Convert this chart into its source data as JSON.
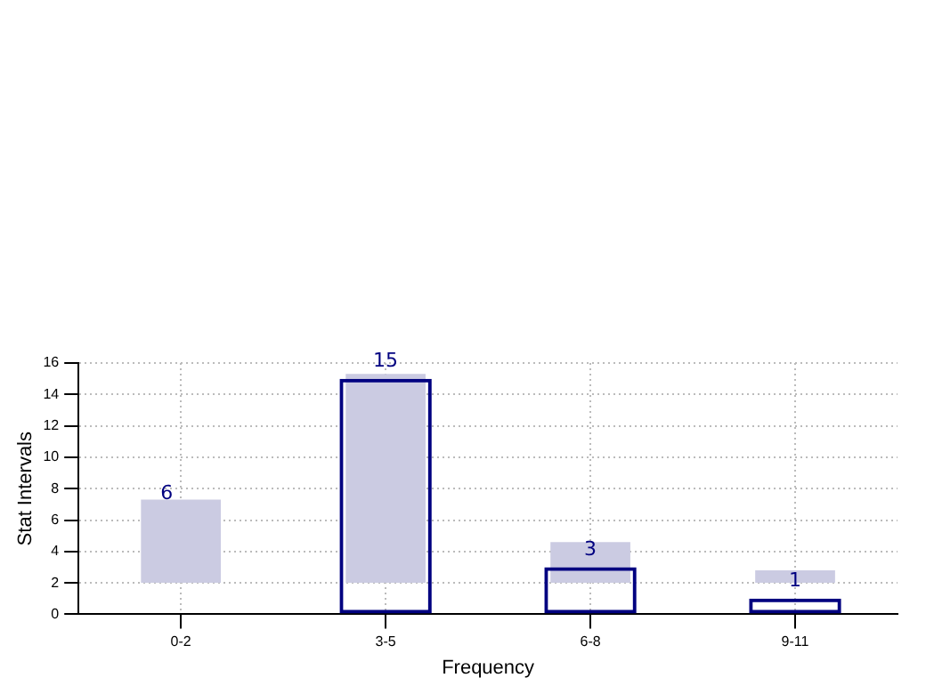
{
  "chart_data": {
    "type": "bar",
    "xlabel": "Frequency",
    "ylabel": "Stat Intervals",
    "categories": [
      "0-2",
      "3-5",
      "6-8",
      "9-11"
    ],
    "series": [
      {
        "color": "#cbcbe2",
        "values": [
          5.3,
          13.3,
          2.6,
          0.8
        ],
        "base": [
          2,
          2,
          2,
          2
        ]
      },
      {
        "color": "#000080",
        "values": [
          null,
          15,
          3,
          1
        ],
        "value_labels": [
          null,
          "15",
          "3",
          "1"
        ]
      }
    ],
    "annotations": [
      "6"
    ],
    "ylim": [
      0,
      16
    ],
    "yticks": [
      0,
      2,
      4,
      6,
      8,
      10,
      12,
      14,
      16
    ],
    "grid": true,
    "legend": false
  }
}
